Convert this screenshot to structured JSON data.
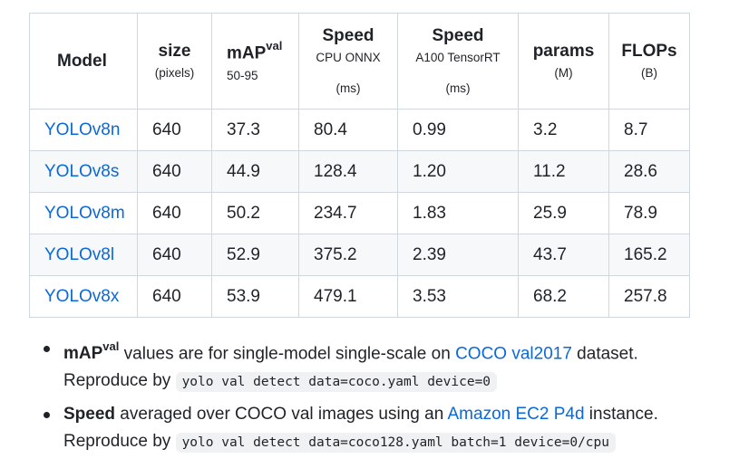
{
  "table": {
    "headers": [
      {
        "main": "Model",
        "sup": "",
        "sub": "",
        "sub2": ""
      },
      {
        "main": "size",
        "sup": "",
        "sub": "(pixels)",
        "sub2": ""
      },
      {
        "main": "mAP",
        "sup": "val",
        "sub": "50-95",
        "sub2": ""
      },
      {
        "main": "Speed",
        "sup": "",
        "sub": "CPU ONNX",
        "sub2": "(ms)"
      },
      {
        "main": "Speed",
        "sup": "",
        "sub": "A100 TensorRT",
        "sub2": "(ms)"
      },
      {
        "main": "params",
        "sup": "",
        "sub": "(M)",
        "sub2": ""
      },
      {
        "main": "FLOPs",
        "sup": "",
        "sub": "(B)",
        "sub2": ""
      }
    ],
    "rows": [
      {
        "model": "YOLOv8n",
        "size": "640",
        "map": "37.3",
        "cpu": "80.4",
        "gpu": "0.99",
        "params": "3.2",
        "flops": "8.7"
      },
      {
        "model": "YOLOv8s",
        "size": "640",
        "map": "44.9",
        "cpu": "128.4",
        "gpu": "1.20",
        "params": "11.2",
        "flops": "28.6"
      },
      {
        "model": "YOLOv8m",
        "size": "640",
        "map": "50.2",
        "cpu": "234.7",
        "gpu": "1.83",
        "params": "25.9",
        "flops": "78.9"
      },
      {
        "model": "YOLOv8l",
        "size": "640",
        "map": "52.9",
        "cpu": "375.2",
        "gpu": "2.39",
        "params": "43.7",
        "flops": "165.2"
      },
      {
        "model": "YOLOv8x",
        "size": "640",
        "map": "53.9",
        "cpu": "479.1",
        "gpu": "3.53",
        "params": "68.2",
        "flops": "257.8"
      }
    ]
  },
  "notes": [
    {
      "bold": "mAP",
      "bold_sup": "val",
      "text_before": " values are for single-model single-scale on ",
      "link": "COCO val2017",
      "text_after": " dataset.",
      "line2_prefix": "Reproduce by ",
      "code": "yolo val detect data=coco.yaml device=0"
    },
    {
      "bold": "Speed",
      "bold_sup": "",
      "text_before": " averaged over COCO val images using an ",
      "link": "Amazon EC2 P4d",
      "text_after": " instance.",
      "line2_prefix": "Reproduce by ",
      "code": "yolo val detect data=coco128.yaml batch=1 device=0/cpu"
    }
  ],
  "colors": {
    "link": "#0969da",
    "border": "#d0d7de",
    "row_alt": "#f6f8fa",
    "code_bg": "#eff1f3"
  }
}
